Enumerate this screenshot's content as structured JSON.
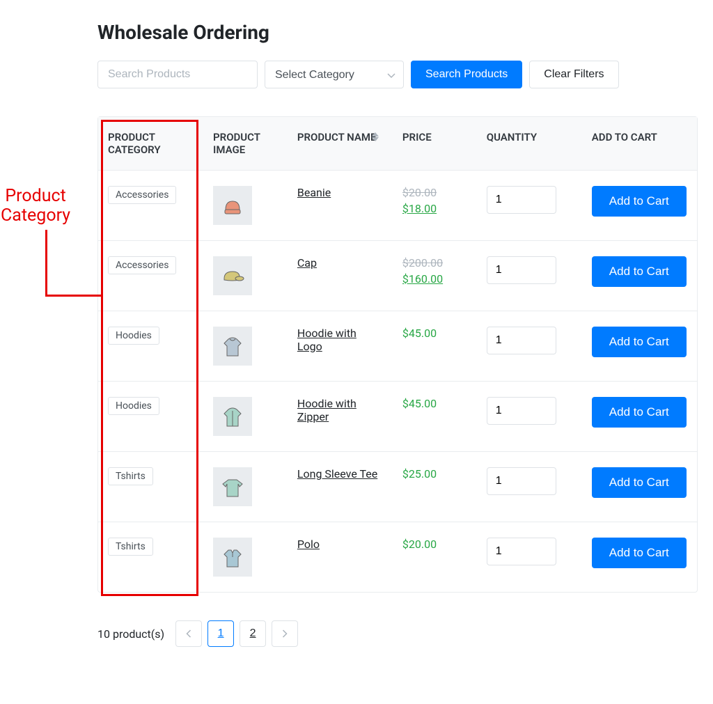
{
  "title": "Wholesale Ordering",
  "filters": {
    "search_placeholder": "Search Products",
    "category_placeholder": "Select Category",
    "search_button": "Search Products",
    "clear_button": "Clear Filters"
  },
  "annotation": {
    "label": "Product Category",
    "color": "#e60000"
  },
  "table": {
    "headers": {
      "category": "PRODUCT CATEGORY",
      "image": "PRODUCT IMAGE",
      "name": "PRODUCT NAME",
      "price": "PRICE",
      "quantity": "QUANTITY",
      "cart": "ADD TO CART"
    },
    "add_label": "Add to Cart",
    "rows": [
      {
        "category": "Accessories",
        "name": "Beanie",
        "price_old": "$20.00",
        "price_current": "$18.00",
        "sale": true,
        "qty": "1",
        "icon": "beanie",
        "icon_color": "#e8947a"
      },
      {
        "category": "Accessories",
        "name": "Cap",
        "price_old": "$200.00",
        "price_current": "$160.00",
        "sale": true,
        "qty": "1",
        "icon": "cap",
        "icon_color": "#d4c77a"
      },
      {
        "category": "Hoodies",
        "name": "Hoodie with Logo",
        "price_old": "",
        "price_current": "$45.00",
        "sale": false,
        "qty": "1",
        "icon": "hoodie",
        "icon_color": "#b8c7d4"
      },
      {
        "category": "Hoodies",
        "name": "Hoodie with Zipper",
        "price_old": "",
        "price_current": "$45.00",
        "sale": false,
        "qty": "1",
        "icon": "hoodie-zip",
        "icon_color": "#a8d4c7"
      },
      {
        "category": "Tshirts",
        "name": "Long Sleeve Tee",
        "price_old": "",
        "price_current": "$25.00",
        "sale": false,
        "qty": "1",
        "icon": "longsleeve",
        "icon_color": "#a8d4c7"
      },
      {
        "category": "Tshirts",
        "name": "Polo",
        "price_old": "",
        "price_current": "$20.00",
        "sale": false,
        "qty": "1",
        "icon": "polo",
        "icon_color": "#a8c7d4"
      }
    ]
  },
  "pagination": {
    "count_label": "10 product(s)",
    "current": "1",
    "pages": [
      "1",
      "2"
    ]
  },
  "colors": {
    "primary": "#007bff",
    "success": "#28a745",
    "muted": "#adb5bd",
    "border": "#dee2e6",
    "header_bg": "#f8f9fa"
  }
}
